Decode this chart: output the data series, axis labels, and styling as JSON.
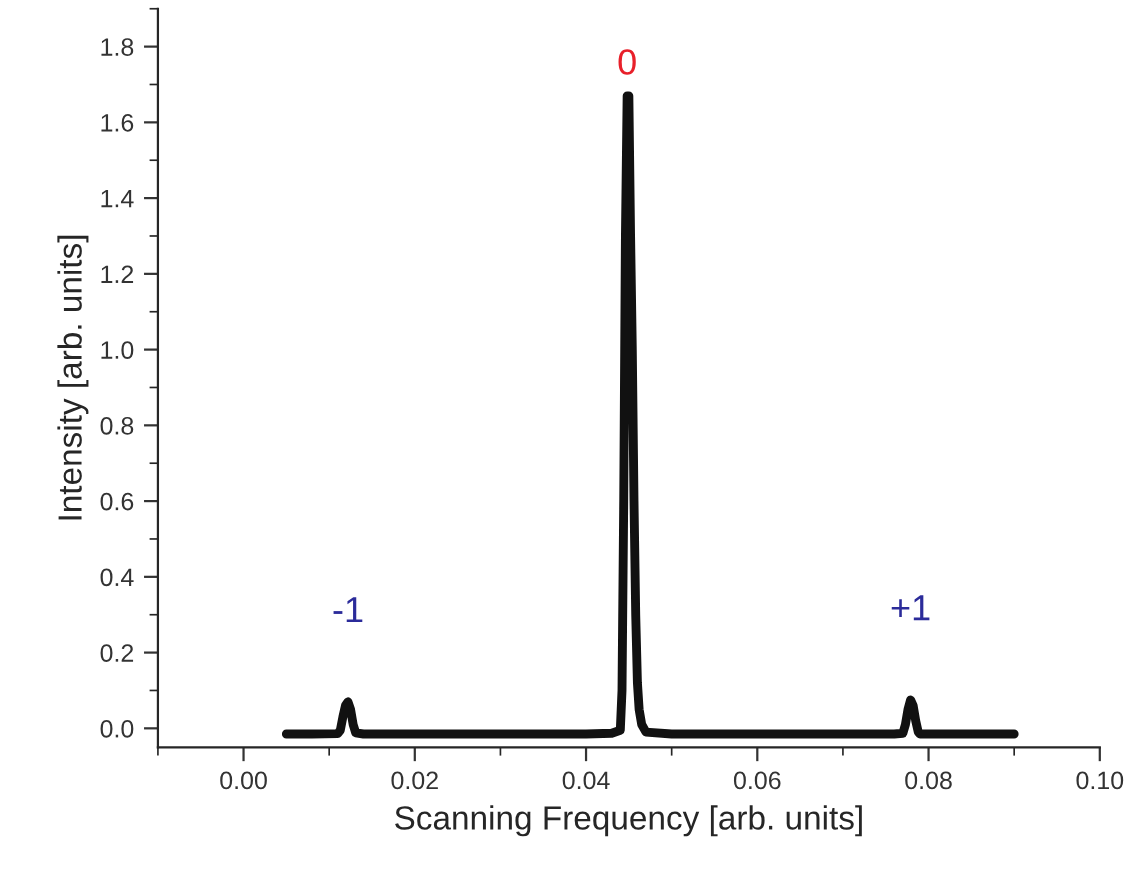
{
  "chart_data": {
    "type": "line",
    "xlabel": "Scanning Frequency [arb. units]",
    "ylabel": "Intensity [arb. units]",
    "xlim": [
      -0.01,
      0.1
    ],
    "xticks": [
      {
        "value": 0.0,
        "label": "0.00"
      },
      {
        "value": 0.02,
        "label": "0.02"
      },
      {
        "value": 0.04,
        "label": "0.04"
      },
      {
        "value": 0.06,
        "label": "0.06"
      },
      {
        "value": 0.08,
        "label": "0.08"
      },
      {
        "value": 0.1,
        "label": "0.10"
      }
    ],
    "ylim": [
      -0.05,
      1.9
    ],
    "yticks": [
      {
        "value": 0.0,
        "label": "0.0"
      },
      {
        "value": 0.2,
        "label": "0.2"
      },
      {
        "value": 0.4,
        "label": "0.4"
      },
      {
        "value": 0.6,
        "label": "0.6"
      },
      {
        "value": 0.8,
        "label": "0.8"
      },
      {
        "value": 1.0,
        "label": "1.0"
      },
      {
        "value": 1.2,
        "label": "1.2"
      },
      {
        "value": 1.4,
        "label": "1.4"
      },
      {
        "value": 1.6,
        "label": "1.6"
      },
      {
        "value": 1.8,
        "label": "1.8"
      }
    ],
    "grid": false,
    "legend": false,
    "marker": "none",
    "line_style": "solid",
    "series": [
      {
        "color": "#111111",
        "x": [
          0.005,
          0.008,
          0.011,
          0.0113,
          0.0116,
          0.0119,
          0.0122,
          0.0125,
          0.0128,
          0.0131,
          0.014,
          0.02,
          0.03,
          0.04,
          0.043,
          0.044,
          0.0442,
          0.0444,
          0.0446,
          0.0448,
          0.045,
          0.0452,
          0.0454,
          0.0456,
          0.0458,
          0.046,
          0.0462,
          0.0465,
          0.047,
          0.05,
          0.06,
          0.07,
          0.076,
          0.077,
          0.0773,
          0.0776,
          0.0779,
          0.0782,
          0.0785,
          0.0788,
          0.079,
          0.082,
          0.086,
          0.09
        ],
        "values": [
          -0.015,
          -0.015,
          -0.014,
          -0.005,
          0.03,
          0.06,
          0.07,
          0.05,
          0.01,
          -0.012,
          -0.015,
          -0.015,
          -0.015,
          -0.015,
          -0.013,
          -0.005,
          0.1,
          0.6,
          1.3,
          1.67,
          1.67,
          1.3,
          1.0,
          0.6,
          0.3,
          0.12,
          0.05,
          0.01,
          -0.01,
          -0.015,
          -0.015,
          -0.015,
          -0.015,
          -0.013,
          0.01,
          0.05,
          0.075,
          0.06,
          0.02,
          -0.01,
          -0.015,
          -0.015,
          -0.015,
          -0.015
        ]
      }
    ],
    "annotations": [
      "-1",
      "0",
      "+1"
    ]
  }
}
